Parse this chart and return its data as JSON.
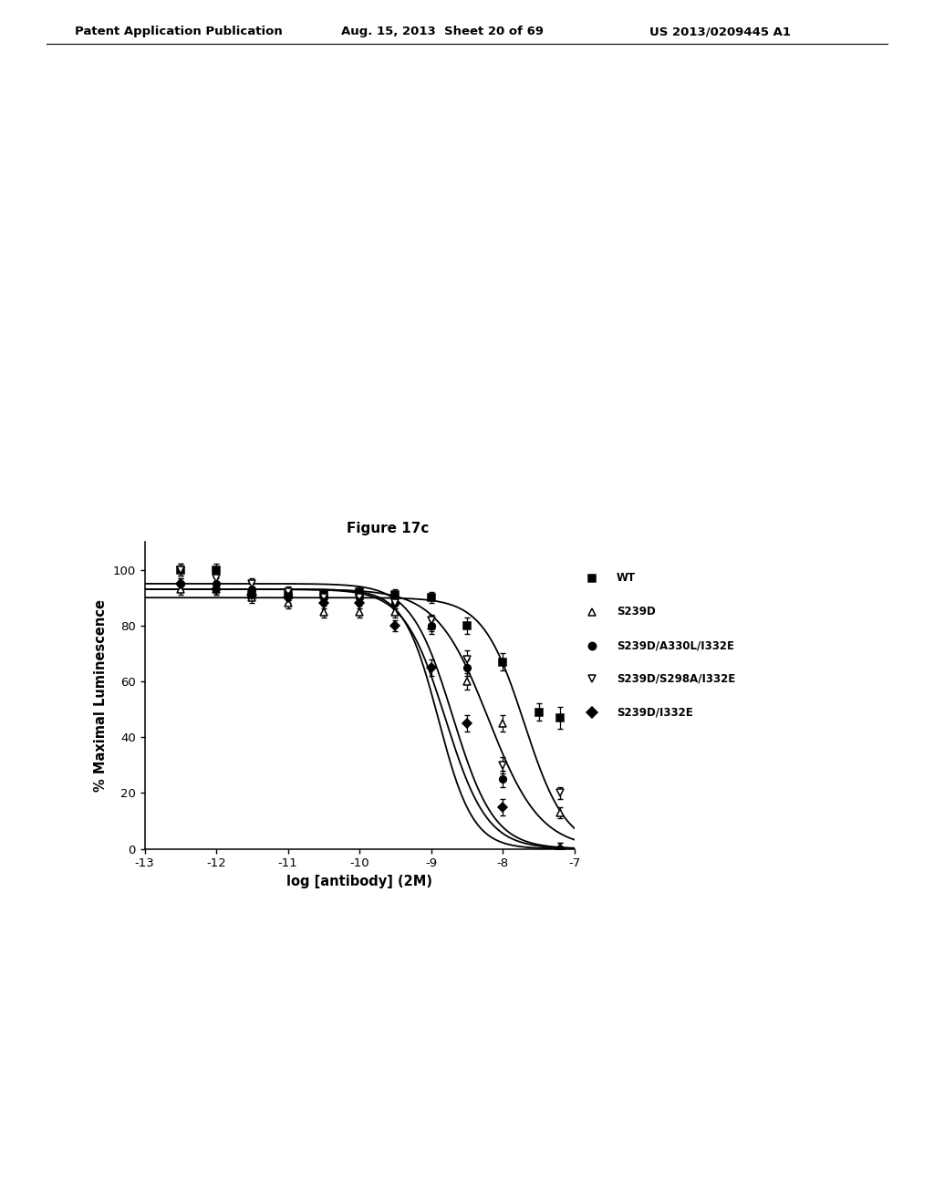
{
  "title": "Figure 17c",
  "xlabel": "log [antibody] (2M)",
  "ylabel": "% Maximal Luminescence",
  "xlim": [
    -13,
    -7
  ],
  "ylim": [
    0,
    110
  ],
  "xticks": [
    -13,
    -12,
    -11,
    -10,
    -9,
    -8,
    -7
  ],
  "yticks": [
    0,
    20,
    40,
    60,
    80,
    100
  ],
  "background_color": "#ffffff",
  "series": [
    {
      "label": "WT",
      "marker": "s",
      "fillstyle": "full",
      "color": "#000000",
      "ec50": -8.2,
      "top": 93,
      "bottom": 0,
      "hill": 1.2,
      "data_x": [
        -12.5,
        -12.0,
        -11.5,
        -11.0,
        -10.5,
        -10.0,
        -9.5,
        -9.0,
        -8.5,
        -8.0,
        -7.5,
        -7.2
      ],
      "data_y": [
        100,
        100,
        91,
        91,
        91,
        92,
        91,
        90,
        80,
        67,
        49,
        47
      ],
      "yerr": [
        2,
        2,
        2,
        2,
        2,
        2,
        2,
        2,
        3,
        3,
        3,
        4
      ]
    },
    {
      "label": "S239D",
      "marker": "^",
      "fillstyle": "none",
      "color": "#000000",
      "ec50": -7.7,
      "top": 90,
      "bottom": 0,
      "hill": 1.5,
      "data_x": [
        -12.5,
        -12.0,
        -11.5,
        -11.0,
        -10.5,
        -10.0,
        -9.5,
        -9.0,
        -8.5,
        -8.0,
        -7.2
      ],
      "data_y": [
        93,
        93,
        90,
        88,
        85,
        85,
        85,
        80,
        60,
        45,
        13
      ],
      "yerr": [
        2,
        2,
        2,
        2,
        2,
        2,
        2,
        2,
        3,
        3,
        2
      ]
    },
    {
      "label": "S239D/A330L/I332E",
      "marker": "o",
      "fillstyle": "full",
      "color": "#000000",
      "ec50": -8.8,
      "top": 93,
      "bottom": 0,
      "hill": 1.5,
      "data_x": [
        -12.5,
        -12.0,
        -11.5,
        -11.0,
        -10.5,
        -10.0,
        -9.5,
        -9.0,
        -8.5,
        -8.0,
        -7.2
      ],
      "data_y": [
        95,
        95,
        93,
        91,
        90,
        90,
        88,
        80,
        65,
        25,
        0
      ],
      "yerr": [
        2,
        2,
        2,
        2,
        2,
        2,
        2,
        3,
        3,
        3,
        2
      ]
    },
    {
      "label": "S239D/S298A/I332E",
      "marker": "v",
      "fillstyle": "none",
      "color": "#000000",
      "ec50": -8.7,
      "top": 95,
      "bottom": 0,
      "hill": 1.5,
      "data_x": [
        -12.5,
        -12.0,
        -11.5,
        -11.0,
        -10.5,
        -10.0,
        -9.5,
        -9.0,
        -8.5,
        -8.0,
        -7.2
      ],
      "data_y": [
        100,
        97,
        95,
        92,
        90,
        90,
        88,
        82,
        68,
        30,
        20
      ],
      "yerr": [
        2,
        2,
        2,
        2,
        2,
        2,
        2,
        2,
        3,
        3,
        2
      ]
    },
    {
      "label": "S239D/I332E",
      "marker": "D",
      "fillstyle": "full",
      "color": "#000000",
      "ec50": -8.9,
      "top": 93,
      "bottom": 0,
      "hill": 1.8,
      "data_x": [
        -12.5,
        -12.0,
        -11.5,
        -11.0,
        -10.5,
        -10.0,
        -9.5,
        -9.0,
        -8.5,
        -8.0,
        -7.2
      ],
      "data_y": [
        95,
        93,
        91,
        90,
        88,
        88,
        80,
        65,
        45,
        15,
        0
      ],
      "yerr": [
        2,
        2,
        2,
        2,
        2,
        2,
        2,
        3,
        3,
        3,
        2
      ]
    }
  ],
  "header_left": "Patent Application Publication",
  "header_mid": "Aug. 15, 2013  Sheet 20 of 69",
  "header_right": "US 2013/0209445 A1",
  "legend_items": [
    {
      "label": "WT",
      "marker": "s",
      "fillstyle": "full"
    },
    {
      "label": "S239D",
      "marker": "^",
      "fillstyle": "none"
    },
    {
      "label": "S239D/A330L/I332E",
      "marker": "o",
      "fillstyle": "full"
    },
    {
      "label": "S239D/S298A/I332E",
      "marker": "v",
      "fillstyle": "none"
    },
    {
      "label": "S239D/I332E",
      "marker": "D",
      "fillstyle": "full"
    }
  ]
}
